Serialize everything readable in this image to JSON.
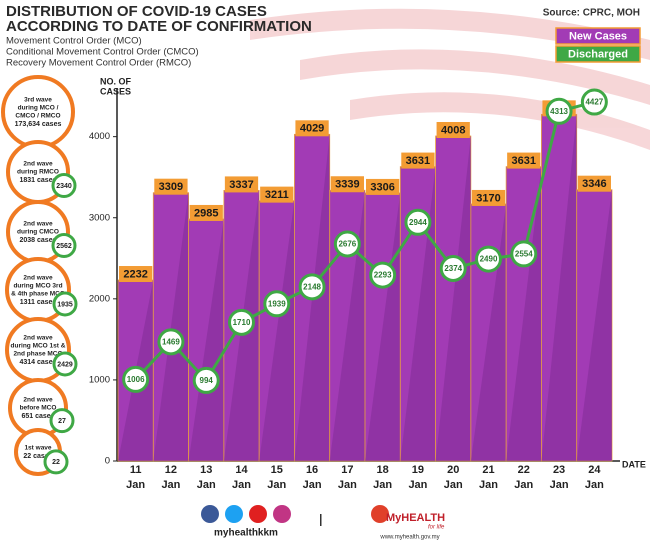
{
  "chart_data": {
    "type": "bar",
    "title": "DISTRIBUTION OF COVID-19 CASES",
    "subtitle": "ACCORDING TO DATE OF CONFIRMATION",
    "notes": [
      "Movement Control Order (MCO)",
      "Conditional Movement Control Order (CMCO)",
      "Recovery Movement Control Order (RMCO)"
    ],
    "source": "Source: CPRC, MOH",
    "y_label": [
      "NO. OF",
      "CASES"
    ],
    "x_label": "DATE",
    "categories": [
      [
        "11",
        "Jan"
      ],
      [
        "12",
        "Jan"
      ],
      [
        "13",
        "Jan"
      ],
      [
        "14",
        "Jan"
      ],
      [
        "15",
        "Jan"
      ],
      [
        "16",
        "Jan"
      ],
      [
        "17",
        "Jan"
      ],
      [
        "18",
        "Jan"
      ],
      [
        "19",
        "Jan"
      ],
      [
        "20",
        "Jan"
      ],
      [
        "21",
        "Jan"
      ],
      [
        "22",
        "Jan"
      ],
      [
        "23",
        "Jan"
      ],
      [
        "24",
        "Jan"
      ]
    ],
    "series": [
      {
        "name": "New Cases",
        "color": "#a23bb5",
        "values": [
          2232,
          3309,
          2985,
          3337,
          3211,
          4029,
          3339,
          3306,
          3631,
          4008,
          3170,
          3631,
          4275,
          3346
        ]
      },
      {
        "name": "Discharged",
        "color": "#3fa845",
        "type": "line",
        "values": [
          1006,
          1469,
          994,
          1710,
          1939,
          2148,
          2676,
          2293,
          2944,
          2374,
          2490,
          2554,
          4313,
          4427
        ]
      }
    ],
    "ylim": [
      0,
      4600
    ],
    "yticks": [
      0,
      1000,
      2000,
      3000,
      4000
    ],
    "waves": [
      {
        "label": [
          "3rd wave",
          "during MCO /",
          "CMCO / RMCO"
        ],
        "count": "173,634 cases"
      },
      {
        "label": [
          "2nd wave",
          "during RMCO"
        ],
        "count": "1831 cases",
        "discharged": "2340"
      },
      {
        "label": [
          "2nd wave",
          "during CMCO"
        ],
        "count": "2038 cases",
        "discharged": "2562"
      },
      {
        "label": [
          "2nd wave",
          "during MCO 3rd",
          "& 4th phase MCO"
        ],
        "count": "1311 cases",
        "discharged": "1935"
      },
      {
        "label": [
          "2nd wave",
          "during MCO 1st &",
          "2nd phase MCO"
        ],
        "count": "4314 cases",
        "discharged": "2429"
      },
      {
        "label": [
          "2nd wave",
          "before MCO"
        ],
        "count": "651 cases",
        "discharged": "27"
      },
      {
        "label": [
          "1st wave"
        ],
        "count": "22 cases",
        "discharged": "22"
      }
    ],
    "footer": {
      "handle": "myhealthkkm",
      "brand": "MyHEALTH",
      "tagline": "for life",
      "url": "www.myhealth.gov.my"
    }
  }
}
